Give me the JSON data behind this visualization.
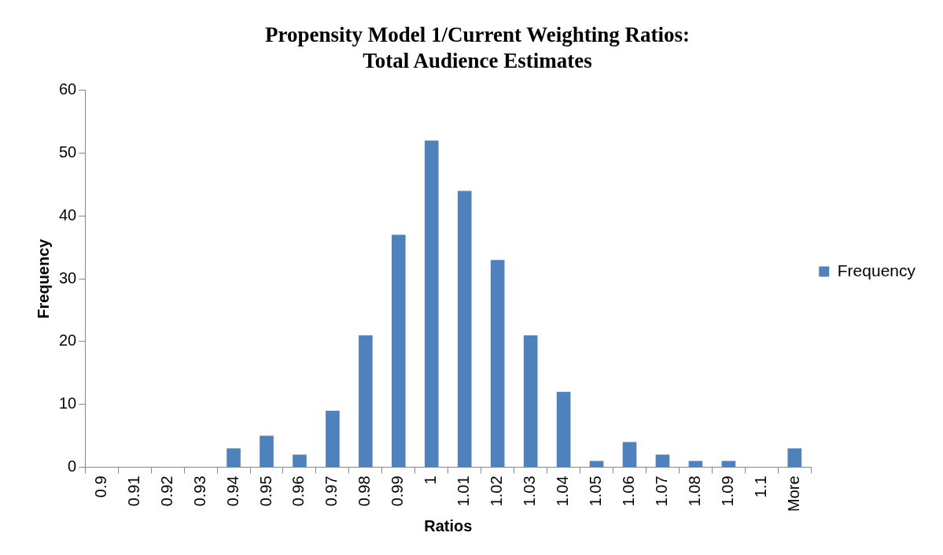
{
  "chart_data": {
    "type": "bar",
    "title": "Propensity Model 1/Current Weighting Ratios:\nTotal Audience Estimates",
    "xlabel": "Ratios",
    "ylabel": "Frequency",
    "categories": [
      "0.9",
      "0.91",
      "0.92",
      "0.93",
      "0.94",
      "0.95",
      "0.96",
      "0.97",
      "0.98",
      "0.99",
      "1",
      "1.01",
      "1.02",
      "1.03",
      "1.04",
      "1.05",
      "1.06",
      "1.07",
      "1.08",
      "1.09",
      "1.1",
      "More"
    ],
    "series": [
      {
        "name": "Frequency",
        "color": "#4f81bd",
        "values": [
          0,
          0,
          0,
          0,
          3,
          5,
          2,
          9,
          21,
          37,
          52,
          44,
          33,
          21,
          12,
          1,
          4,
          2,
          1,
          1,
          0,
          3
        ]
      }
    ],
    "ylim": [
      0,
      60
    ],
    "yticks": [
      0,
      10,
      20,
      30,
      40,
      50,
      60
    ],
    "grid": false,
    "legend": "right"
  }
}
